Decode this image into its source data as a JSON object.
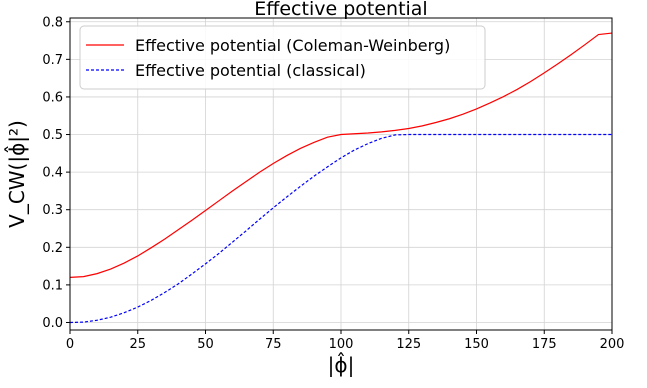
{
  "chart_data": {
    "type": "line",
    "title": "Effective potential",
    "xlabel": "|ϕ̂|",
    "ylabel": "V_CW(|ϕ̂|²)",
    "xlim": [
      0,
      200
    ],
    "ylim": [
      -0.02,
      0.81
    ],
    "x_ticks": [
      0,
      25,
      50,
      75,
      100,
      125,
      150,
      175,
      200
    ],
    "y_ticks": [
      0.0,
      0.1,
      0.2,
      0.3,
      0.4,
      0.5,
      0.6,
      0.7,
      0.8
    ],
    "grid": true,
    "legend_position": "top-left",
    "x": [
      0,
      5,
      10,
      15,
      20,
      25,
      30,
      35,
      40,
      45,
      50,
      55,
      60,
      65,
      70,
      75,
      80,
      85,
      90,
      95,
      100,
      105,
      110,
      115,
      120,
      125,
      130,
      135,
      140,
      145,
      150,
      155,
      160,
      165,
      170,
      175,
      180,
      185,
      190,
      195,
      200
    ],
    "series": [
      {
        "name": "Effective potential (Coleman-Weinberg)",
        "color": "#ff0000",
        "dash": "solid",
        "values": [
          0.12,
          0.122,
          0.13,
          0.142,
          0.158,
          0.177,
          0.199,
          0.222,
          0.247,
          0.272,
          0.298,
          0.324,
          0.35,
          0.375,
          0.4,
          0.423,
          0.444,
          0.463,
          0.479,
          0.493,
          0.5,
          0.502,
          0.504,
          0.507,
          0.511,
          0.516,
          0.523,
          0.532,
          0.542,
          0.554,
          0.568,
          0.584,
          0.601,
          0.62,
          0.641,
          0.664,
          0.688,
          0.713,
          0.739,
          0.766,
          0.77
        ]
      },
      {
        "name": "Effective potential (classical)",
        "color": "#0000ff",
        "dash": "dashed",
        "values": [
          0.0,
          0.001,
          0.006,
          0.014,
          0.026,
          0.041,
          0.059,
          0.08,
          0.103,
          0.129,
          0.156,
          0.184,
          0.214,
          0.244,
          0.275,
          0.305,
          0.334,
          0.362,
          0.389,
          0.414,
          0.438,
          0.459,
          0.476,
          0.49,
          0.499,
          0.5,
          0.5,
          0.5,
          0.5,
          0.5,
          0.5,
          0.5,
          0.5,
          0.5,
          0.5,
          0.5,
          0.5,
          0.5,
          0.5,
          0.5,
          0.5
        ]
      }
    ]
  }
}
